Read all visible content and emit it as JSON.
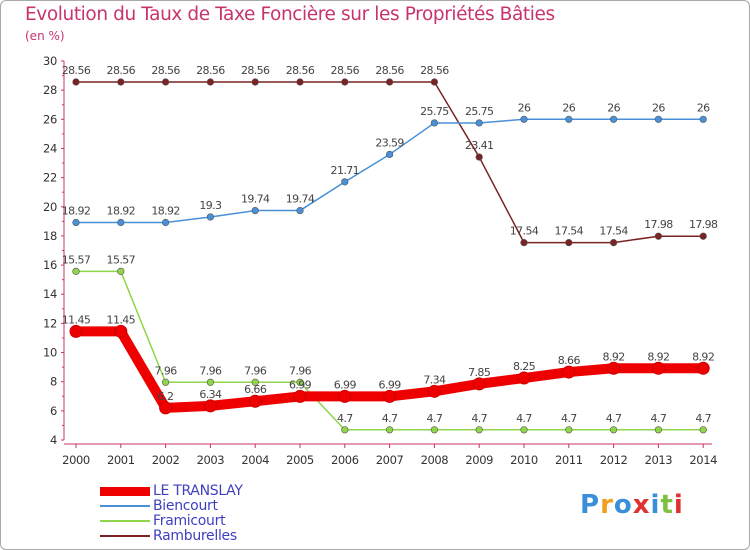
{
  "chart_data": {
    "type": "line",
    "title": "Evolution du Taux de Taxe Foncière sur les Propriétés Bâties",
    "ylabel": "(en %)",
    "xlabel": "",
    "x": [
      "2000",
      "2001",
      "2002",
      "2003",
      "2004",
      "2005",
      "2006",
      "2007",
      "2008",
      "2009",
      "2010",
      "2011",
      "2012",
      "2013",
      "2014"
    ],
    "ylim": [
      4,
      30
    ],
    "yticks": [
      "4",
      "6",
      "8",
      "10",
      "12",
      "14",
      "16",
      "18",
      "20",
      "22",
      "24",
      "26",
      "28",
      "30"
    ],
    "grid": false,
    "legend_position": "bottom-left",
    "series": [
      {
        "name": "LE TRANSLAY",
        "color": "#ee0000",
        "values": [
          11.45,
          11.45,
          6.2,
          6.34,
          6.66,
          6.99,
          6.99,
          6.99,
          7.34,
          7.85,
          8.25,
          8.66,
          8.92,
          8.92,
          8.92
        ],
        "labels": [
          "11.45",
          "11.45",
          "6.2",
          "6.34",
          "6.66",
          "6.99",
          "6.99",
          "6.99",
          "7.34",
          "7.85",
          "8.25",
          "8.66",
          "8.92",
          "8.92",
          "8.92"
        ]
      },
      {
        "name": "Biencourt",
        "color": "#4a90d9",
        "values": [
          18.92,
          18.92,
          18.92,
          19.3,
          19.74,
          19.74,
          21.71,
          23.59,
          25.75,
          25.75,
          26,
          26,
          26,
          26,
          26
        ],
        "labels": [
          "18.92",
          "18.92",
          "18.92",
          "19.3",
          "19.74",
          "19.74",
          "21.71",
          "23.59",
          "25.75",
          "25.75",
          "26",
          "26",
          "26",
          "26",
          "26"
        ]
      },
      {
        "name": "Framicourt",
        "color": "#8fd44a",
        "values": [
          15.57,
          15.57,
          7.96,
          7.96,
          7.96,
          7.96,
          4.7,
          4.7,
          4.7,
          4.7,
          4.7,
          4.7,
          4.7,
          4.7,
          4.7
        ],
        "labels": [
          "15.57",
          "15.57",
          "7.96",
          "7.96",
          "7.96",
          "7.96",
          "4.7",
          "4.7",
          "4.7",
          "4.7",
          "4.7",
          "4.7",
          "4.7",
          "4.7",
          "4.7"
        ]
      },
      {
        "name": "Ramburelles",
        "color": "#7a2323",
        "values": [
          28.56,
          28.56,
          28.56,
          28.56,
          28.56,
          28.56,
          28.56,
          28.56,
          28.56,
          23.41,
          17.54,
          17.54,
          17.54,
          17.98,
          17.98
        ],
        "labels": [
          "28.56",
          "28.56",
          "28.56",
          "28.56",
          "28.56",
          "28.56",
          "28.56",
          "28.56",
          "28.56",
          "23.41",
          "17.54",
          "17.54",
          "17.54",
          "17.98",
          "17.98"
        ]
      }
    ]
  },
  "logo": {
    "text": "Proxiti",
    "letters": [
      "P",
      "r",
      "o",
      "x",
      "i",
      "t",
      "i"
    ],
    "colors": [
      "#3b8fd9",
      "#f0a020",
      "#3b8fd9",
      "#e03030",
      "#3b8fd9",
      "#80c040",
      "#e03030"
    ]
  }
}
